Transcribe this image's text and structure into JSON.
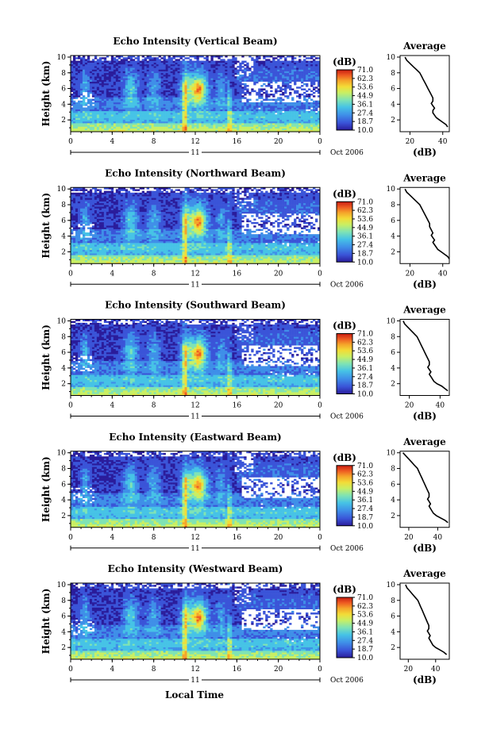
{
  "figure": {
    "xlabel": "Local Time",
    "date_label": "Oct 2006",
    "day_label": "11",
    "colorbar_unit": "(dB)",
    "colorbar_ticks": [
      "71.0",
      "62.3",
      "53.6",
      "44.9",
      "36.1",
      "27.4",
      "18.7",
      "10.0"
    ],
    "colorbar_colors": [
      "#2a1c9b",
      "#3a54d8",
      "#3f8fe8",
      "#46c3e6",
      "#7fe3b4",
      "#c9ef63",
      "#f3dc37",
      "#f5a42a",
      "#ee5b22",
      "#c81d12"
    ]
  },
  "chart_data": [
    {
      "type": "heatmap",
      "title": "Echo Intensity (Vertical Beam)",
      "ylabel": "Height (km)",
      "xlim": [
        0,
        24
      ],
      "ylim": [
        0.5,
        10.2
      ],
      "x_ticks": [
        "0",
        "4",
        "8",
        "12",
        "16",
        "20",
        "0"
      ],
      "y_ticks": [
        "2",
        "4",
        "6",
        "8",
        "10"
      ],
      "zlim": [
        10,
        71
      ]
    },
    {
      "type": "line",
      "title": "Average",
      "xlabel": "(dB)",
      "x_ticks": [
        "20",
        "40"
      ],
      "y_ticks": [
        "2",
        "4",
        "6",
        "8",
        "10"
      ],
      "xlim": [
        14,
        44
      ],
      "ylim": [
        0.5,
        10.2
      ],
      "x": [
        17,
        18,
        20,
        22,
        24,
        26,
        27,
        28,
        29,
        30,
        31,
        32,
        33,
        34,
        34,
        33,
        34,
        35,
        34,
        34,
        35,
        36,
        38,
        40,
        42,
        43
      ],
      "y": [
        10,
        9.6,
        9.2,
        8.8,
        8.4,
        8,
        7.6,
        7.2,
        6.8,
        6.4,
        6,
        5.6,
        5.2,
        4.8,
        4.4,
        4.1,
        3.8,
        3.5,
        3.2,
        2.9,
        2.6,
        2.3,
        2,
        1.7,
        1.4,
        1.1
      ]
    },
    {
      "type": "heatmap",
      "title": "Echo Intensity (Northward Beam)",
      "ylabel": "Height (km)",
      "xlim": [
        0,
        24
      ],
      "ylim": [
        0.5,
        10.2
      ],
      "x_ticks": [
        "0",
        "4",
        "8",
        "12",
        "16",
        "20",
        "0"
      ],
      "y_ticks": [
        "2",
        "4",
        "6",
        "8",
        "10"
      ],
      "zlim": [
        10,
        71
      ]
    },
    {
      "type": "line",
      "title": "Average",
      "xlabel": "(dB)",
      "x_ticks": [
        "20",
        "40"
      ],
      "y_ticks": [
        "2",
        "4",
        "6",
        "8",
        "10"
      ],
      "xlim": [
        14,
        44
      ],
      "ylim": [
        0.5,
        10.2
      ],
      "x": [
        17,
        18,
        20,
        22,
        24,
        26,
        27,
        28,
        29,
        30,
        31,
        32,
        32,
        33,
        34,
        33,
        34,
        35,
        34,
        35,
        36,
        37,
        39,
        41,
        43,
        44
      ],
      "y": [
        10,
        9.6,
        9.2,
        8.8,
        8.4,
        8,
        7.6,
        7.2,
        6.8,
        6.4,
        6,
        5.6,
        5.2,
        4.8,
        4.4,
        4.1,
        3.8,
        3.5,
        3.2,
        2.9,
        2.6,
        2.3,
        2,
        1.7,
        1.4,
        1.1
      ]
    },
    {
      "type": "heatmap",
      "title": "Echo Intensity (Southward Beam)",
      "ylabel": "Height (km)",
      "xlim": [
        0,
        24
      ],
      "ylim": [
        0.5,
        10.2
      ],
      "x_ticks": [
        "0",
        "4",
        "8",
        "12",
        "16",
        "20",
        "0"
      ],
      "y_ticks": [
        "2",
        "4",
        "6",
        "8",
        "10"
      ],
      "zlim": [
        10,
        71
      ]
    },
    {
      "type": "line",
      "title": "Average",
      "xlabel": "(dB)",
      "x_ticks": [
        "20",
        "40"
      ],
      "y_ticks": [
        "2",
        "4",
        "6",
        "8",
        "10"
      ],
      "xlim": [
        14,
        46
      ],
      "ylim": [
        0.5,
        10.2
      ],
      "x": [
        16,
        17,
        19,
        21,
        23,
        25,
        26,
        27,
        28,
        29,
        30,
        31,
        32,
        33,
        33,
        32,
        33,
        34,
        33,
        34,
        35,
        36,
        38,
        41,
        43,
        45
      ],
      "y": [
        10,
        9.6,
        9.2,
        8.8,
        8.4,
        8,
        7.6,
        7.2,
        6.8,
        6.4,
        6,
        5.6,
        5.2,
        4.8,
        4.4,
        4.1,
        3.8,
        3.5,
        3.2,
        2.9,
        2.6,
        2.3,
        2,
        1.7,
        1.4,
        1.1
      ]
    },
    {
      "type": "heatmap",
      "title": "Echo Intensity (Eastward Beam)",
      "ylabel": "Height (km)",
      "xlim": [
        0,
        24
      ],
      "ylim": [
        0.5,
        10.2
      ],
      "x_ticks": [
        "0",
        "4",
        "8",
        "12",
        "16",
        "20",
        "0"
      ],
      "y_ticks": [
        "2",
        "4",
        "6",
        "8",
        "10"
      ],
      "zlim": [
        10,
        71
      ]
    },
    {
      "type": "line",
      "title": "Average",
      "xlabel": "(dB)",
      "x_ticks": [
        "20",
        "40"
      ],
      "y_ticks": [
        "2",
        "4",
        "6",
        "8",
        "10"
      ],
      "xlim": [
        14,
        48
      ],
      "ylim": [
        0.5,
        10.2
      ],
      "x": [
        16,
        18,
        20,
        22,
        24,
        26,
        27,
        28,
        29,
        30,
        31,
        32,
        33,
        34,
        34,
        33,
        34,
        35,
        34,
        35,
        36,
        37,
        39,
        42,
        45,
        47
      ],
      "y": [
        10,
        9.6,
        9.2,
        8.8,
        8.4,
        8,
        7.6,
        7.2,
        6.8,
        6.4,
        6,
        5.6,
        5.2,
        4.8,
        4.4,
        4.1,
        3.8,
        3.5,
        3.2,
        2.9,
        2.6,
        2.3,
        2,
        1.7,
        1.4,
        1.1
      ]
    },
    {
      "type": "heatmap",
      "title": "Echo Intensity (Westward Beam)",
      "ylabel": "Height (km)",
      "xlim": [
        0,
        24
      ],
      "ylim": [
        0.5,
        10.2
      ],
      "x_ticks": [
        "0",
        "4",
        "8",
        "12",
        "16",
        "20",
        "0"
      ],
      "y_ticks": [
        "2",
        "4",
        "6",
        "8",
        "10"
      ],
      "zlim": [
        10,
        71
      ]
    },
    {
      "type": "line",
      "title": "Average",
      "xlabel": "(dB)",
      "x_ticks": [
        "20",
        "40"
      ],
      "y_ticks": [
        "2",
        "4",
        "6",
        "8",
        "10"
      ],
      "xlim": [
        14,
        50
      ],
      "ylim": [
        0.5,
        10.2
      ],
      "x": [
        18,
        19,
        21,
        23,
        25,
        27,
        28,
        29,
        30,
        31,
        32,
        33,
        34,
        35,
        35,
        34,
        35,
        36,
        35,
        36,
        37,
        38,
        40,
        43,
        46,
        48
      ],
      "y": [
        10,
        9.6,
        9.2,
        8.8,
        8.4,
        8,
        7.6,
        7.2,
        6.8,
        6.4,
        6,
        5.6,
        5.2,
        4.8,
        4.4,
        4.1,
        3.8,
        3.5,
        3.2,
        2.9,
        2.6,
        2.3,
        2,
        1.7,
        1.4,
        1.1
      ]
    }
  ]
}
